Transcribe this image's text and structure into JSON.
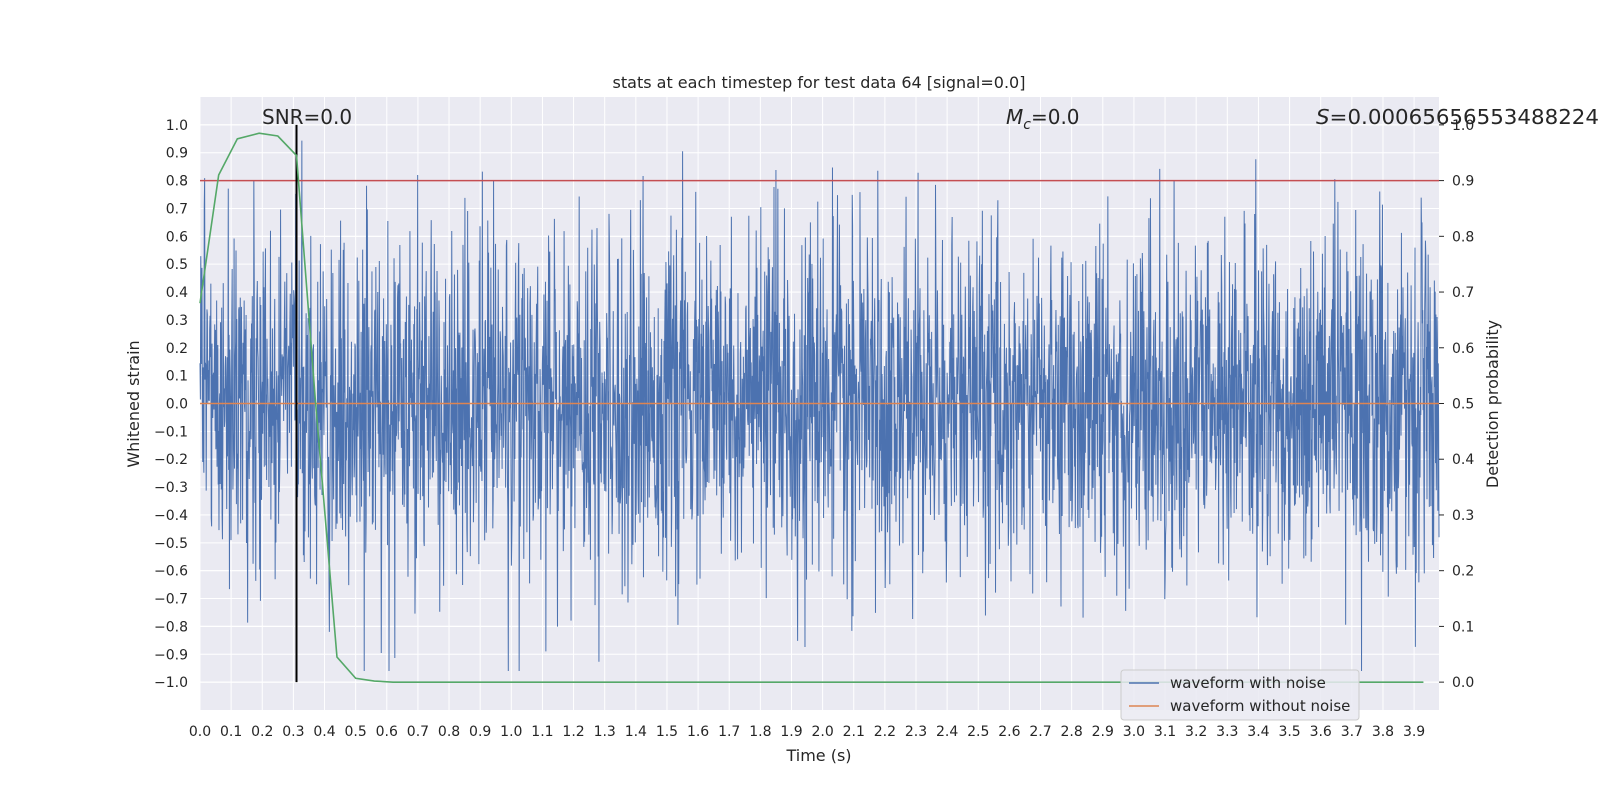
{
  "chart_data": {
    "type": "line",
    "title": "stats at each timestep for test data 64 [signal=0.0]",
    "xlabel": "Time (s)",
    "ylabel": "Whitened strain",
    "y2label": "Detection probability",
    "xlim": [
      0.0,
      3.98
    ],
    "ylim": [
      -1.1,
      1.1
    ],
    "y2lim": [
      -0.05,
      1.05
    ],
    "x_ticks": [
      "0.0",
      "0.1",
      "0.2",
      "0.3",
      "0.4",
      "0.5",
      "0.6",
      "0.7",
      "0.8",
      "0.9",
      "1.0",
      "1.1",
      "1.2",
      "1.3",
      "1.4",
      "1.5",
      "1.6",
      "1.7",
      "1.8",
      "1.9",
      "2.0",
      "2.1",
      "2.2",
      "2.3",
      "2.4",
      "2.5",
      "2.6",
      "2.7",
      "2.8",
      "2.9",
      "3.0",
      "3.1",
      "3.2",
      "3.3",
      "3.4",
      "3.5",
      "3.6",
      "3.7",
      "3.8",
      "3.9"
    ],
    "y_ticks": [
      "1.0",
      "0.9",
      "0.8",
      "0.7",
      "0.6",
      "0.5",
      "0.4",
      "0.3",
      "0.2",
      "0.1",
      "0.0",
      "-0.1",
      "-0.2",
      "-0.3",
      "-0.4",
      "-0.5",
      "-0.6",
      "-0.7",
      "-0.8",
      "-0.9",
      "-1.0"
    ],
    "y2_ticks": [
      "1.0",
      "0.9",
      "0.8",
      "0.7",
      "0.6",
      "0.5",
      "0.4",
      "0.3",
      "0.2",
      "0.1",
      "0.0"
    ],
    "annotations": {
      "snr": "SNR=0.0",
      "mc_symbol": "M",
      "mc_sub": "c",
      "mc_value": "=0.0",
      "s_symbol": "S",
      "s_value": "=0.00065656553488224"
    },
    "legend": {
      "placement": "lower-right",
      "entries": [
        "waveform with noise",
        "waveform without noise"
      ]
    },
    "threshold_y2": 0.9,
    "marker_x": 0.31,
    "colors": {
      "noise": "#4c72b0",
      "clean": "#dd8452",
      "prob": "#55a868",
      "threshold": "#c44e52",
      "marker": "#000000",
      "plot_bg": "#eaeaf2",
      "grid": "#ffffff",
      "text": "#262626"
    },
    "series": [
      {
        "name": "waveform with noise",
        "kind": "noise",
        "noise_amplitude": 0.3,
        "typical_range": [
          -0.6,
          0.65
        ],
        "peak_range": [
          -0.96,
          0.99
        ]
      },
      {
        "name": "waveform without noise",
        "kind": "constant",
        "value": 0.0
      },
      {
        "name": "detection probability",
        "axis": "right",
        "x": [
          0.0,
          0.06,
          0.12,
          0.19,
          0.25,
          0.31,
          0.37,
          0.44,
          0.5,
          0.56,
          0.62,
          0.7,
          1.0,
          1.5,
          2.0,
          2.5,
          3.0,
          3.5,
          3.93
        ],
        "values": [
          0.68,
          0.91,
          0.975,
          0.985,
          0.98,
          0.945,
          0.51,
          0.045,
          0.007,
          0.002,
          0.0,
          0.0,
          0.0,
          0.0,
          0.0,
          0.0,
          0.0,
          0.0,
          0.0
        ]
      }
    ]
  }
}
